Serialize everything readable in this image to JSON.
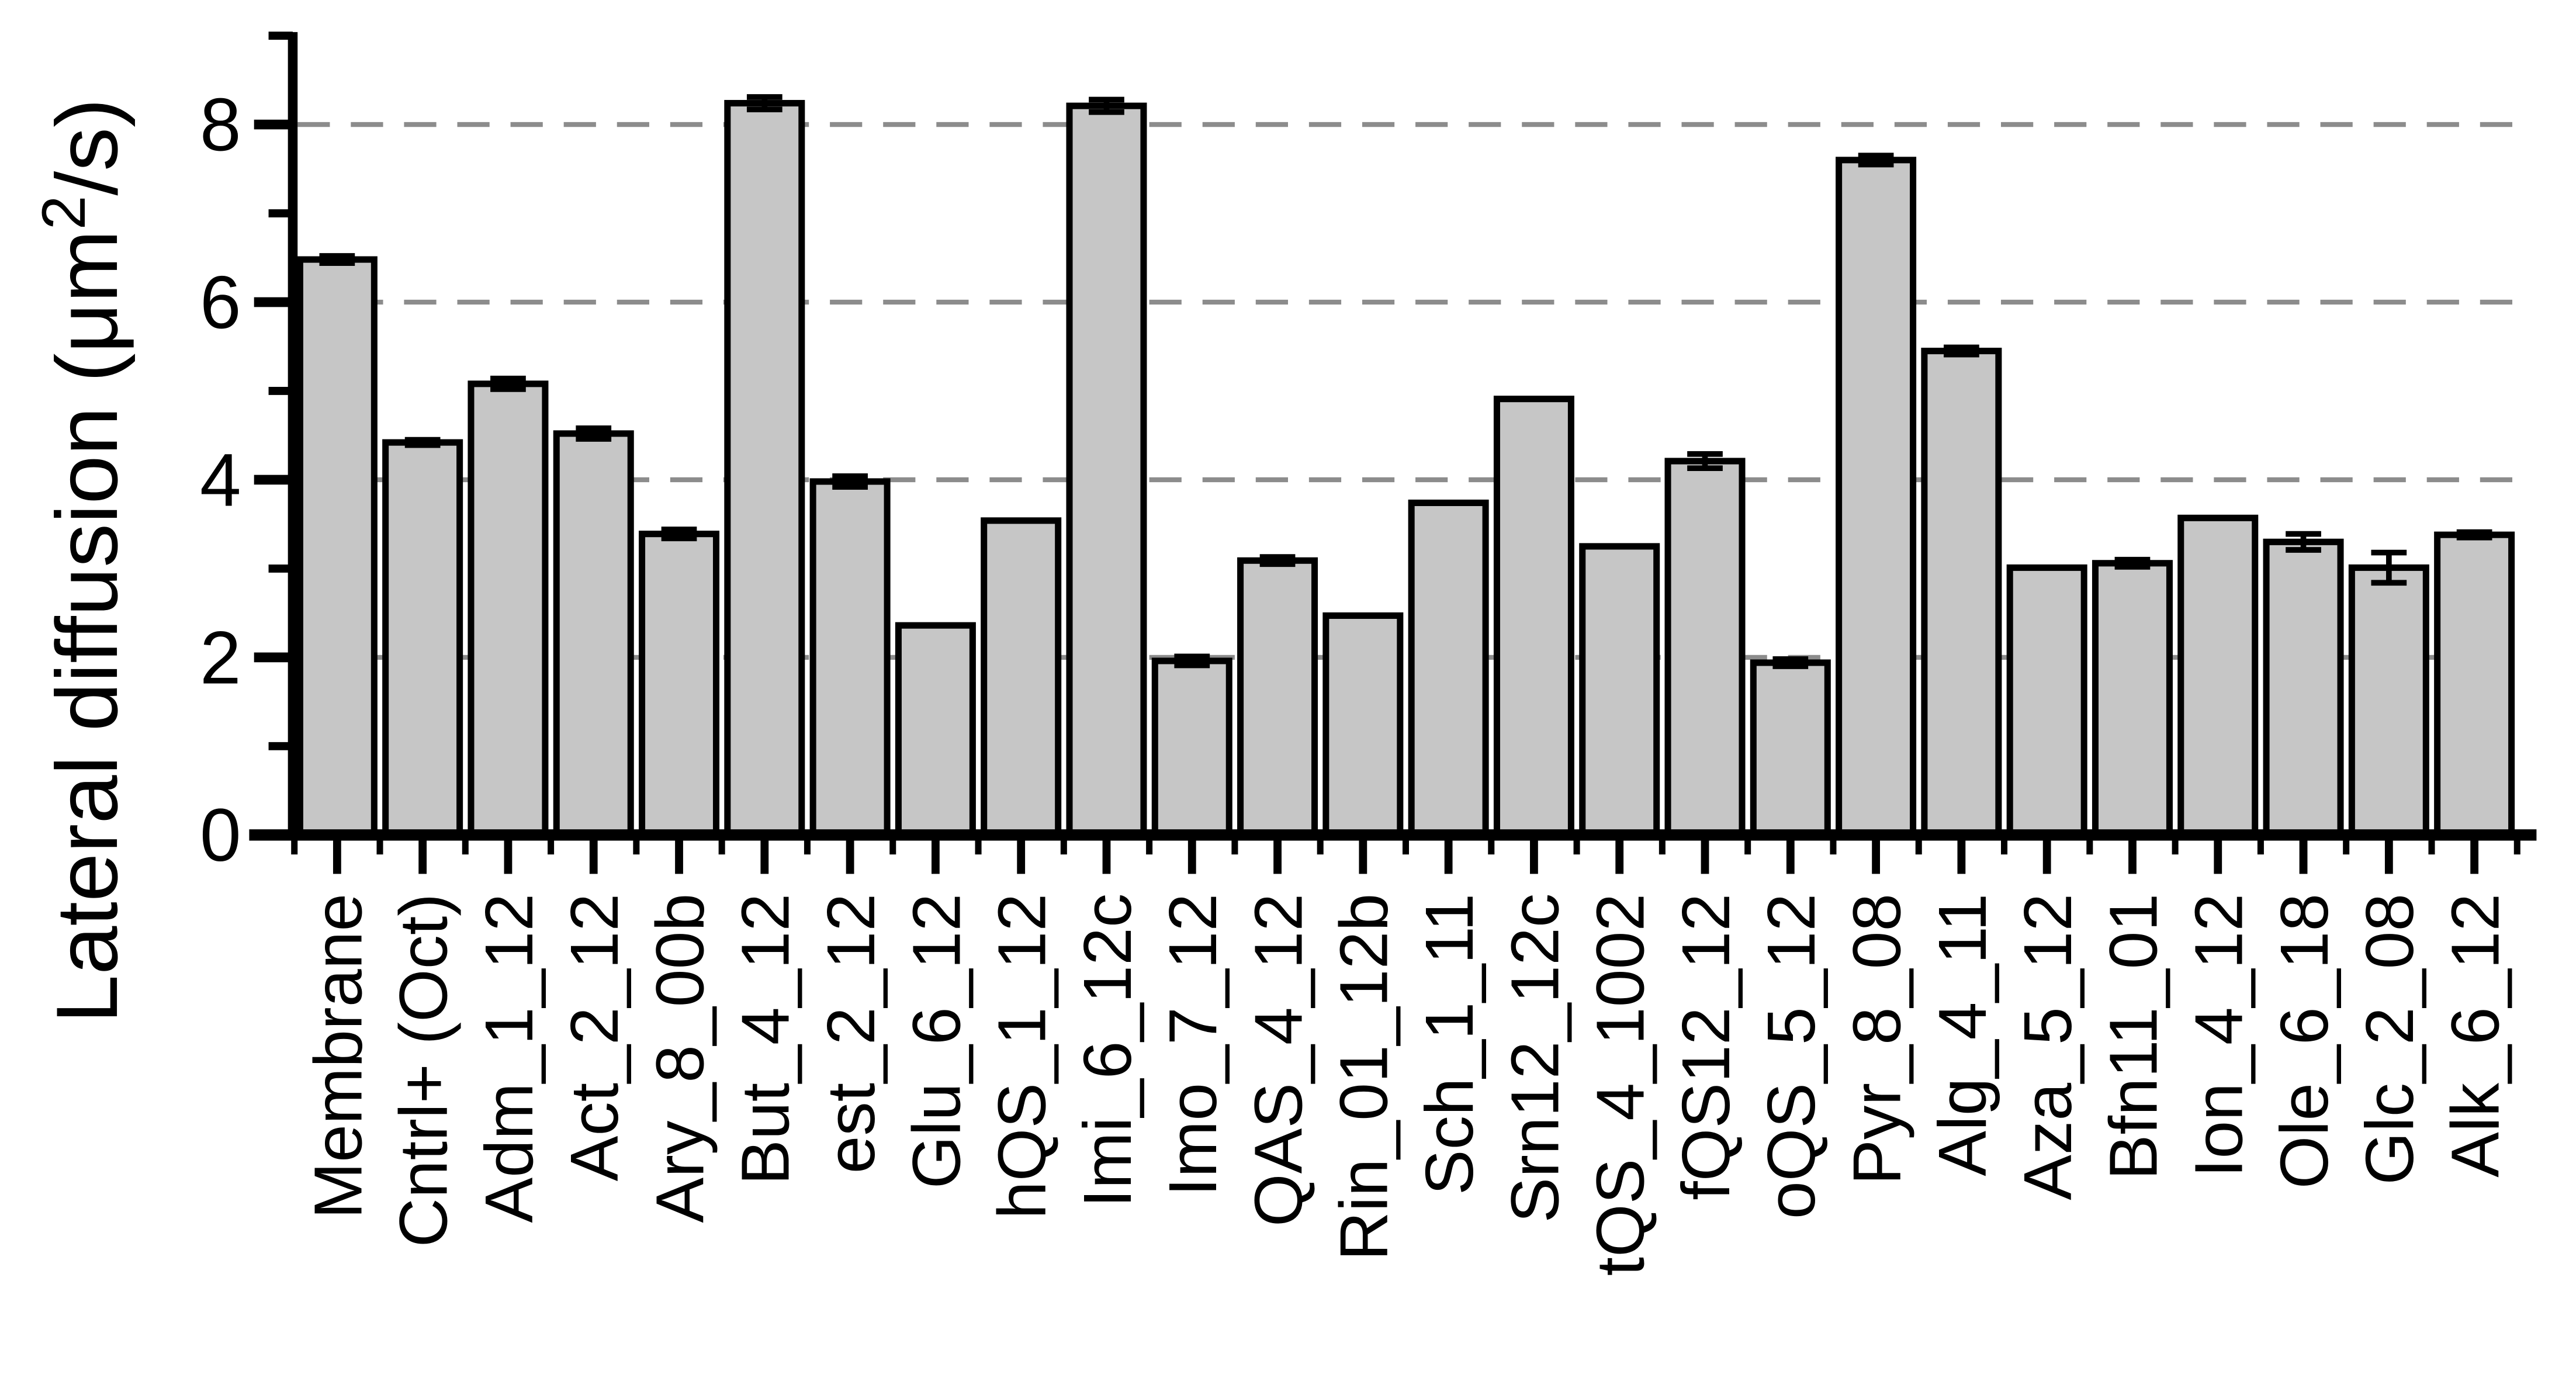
{
  "figure": {
    "background_color": "#ffffff",
    "description": "Bar chart of lateral diffusion coefficients for membrane and compound-treated samples"
  },
  "chart_data": {
    "type": "bar",
    "title": "",
    "xlabel": "",
    "ylabel": "Lateral diffusion (μm²/s)",
    "ylabel_parts": {
      "prefix": "Lateral diffusion (",
      "mu": "μ",
      "m": "m",
      "superscript": "2",
      "suffix": "/s)"
    },
    "ylim": [
      0,
      9
    ],
    "ytick_values": [
      0,
      2,
      4,
      6,
      8
    ],
    "ytick_labels": [
      "0",
      "2",
      "4",
      "6",
      "8"
    ],
    "yminor_values": [
      1,
      3,
      5,
      7,
      9
    ],
    "gridline_values": [
      2,
      4,
      6,
      8
    ],
    "grid_style": "dashed",
    "grid_on": true,
    "legend_position": "none",
    "bar_fill_color": "#c6c6c6",
    "bar_stroke_color": "#000000",
    "grid_color": "#8c8c8c",
    "axis_color": "#000000",
    "categories": [
      "Membrane",
      "Cntrl+ (Oct)",
      "Adm_1_12",
      "Act_2_12",
      "Ary_8_00b",
      "But_4_12",
      "est_2_12",
      "Glu_6_12",
      "hQS_1_12",
      "Imi_6_12c",
      "Imo_7_12",
      "QAS_4_12",
      "Rin_01_12b",
      "Sch_1_11",
      "Srn12_12c",
      "tQS_4_1002",
      "fQS12_12",
      "oQS_5_12",
      "Pyr_8_08",
      "Alg_4_11",
      "Aza_5_12",
      "Bfn11_01",
      "Ion_4_12",
      "Ole_6_18",
      "Glc_2_08",
      "Alk_6_12"
    ],
    "values": [
      6.48,
      4.42,
      5.08,
      4.52,
      3.39,
      8.24,
      3.98,
      2.36,
      3.54,
      8.21,
      1.96,
      3.09,
      2.47,
      3.74,
      4.91,
      3.25,
      4.21,
      1.94,
      7.6,
      5.45,
      3.01,
      3.06,
      3.57,
      3.3,
      3.01,
      3.38
    ],
    "errors": [
      0.04,
      0.03,
      0.06,
      0.06,
      0.05,
      0.07,
      0.06,
      0,
      0,
      0.07,
      0.05,
      0.04,
      0,
      0,
      0,
      0,
      0.08,
      0.04,
      0.05,
      0.04,
      0,
      0.04,
      0,
      0.09,
      0.17,
      0.03
    ]
  }
}
